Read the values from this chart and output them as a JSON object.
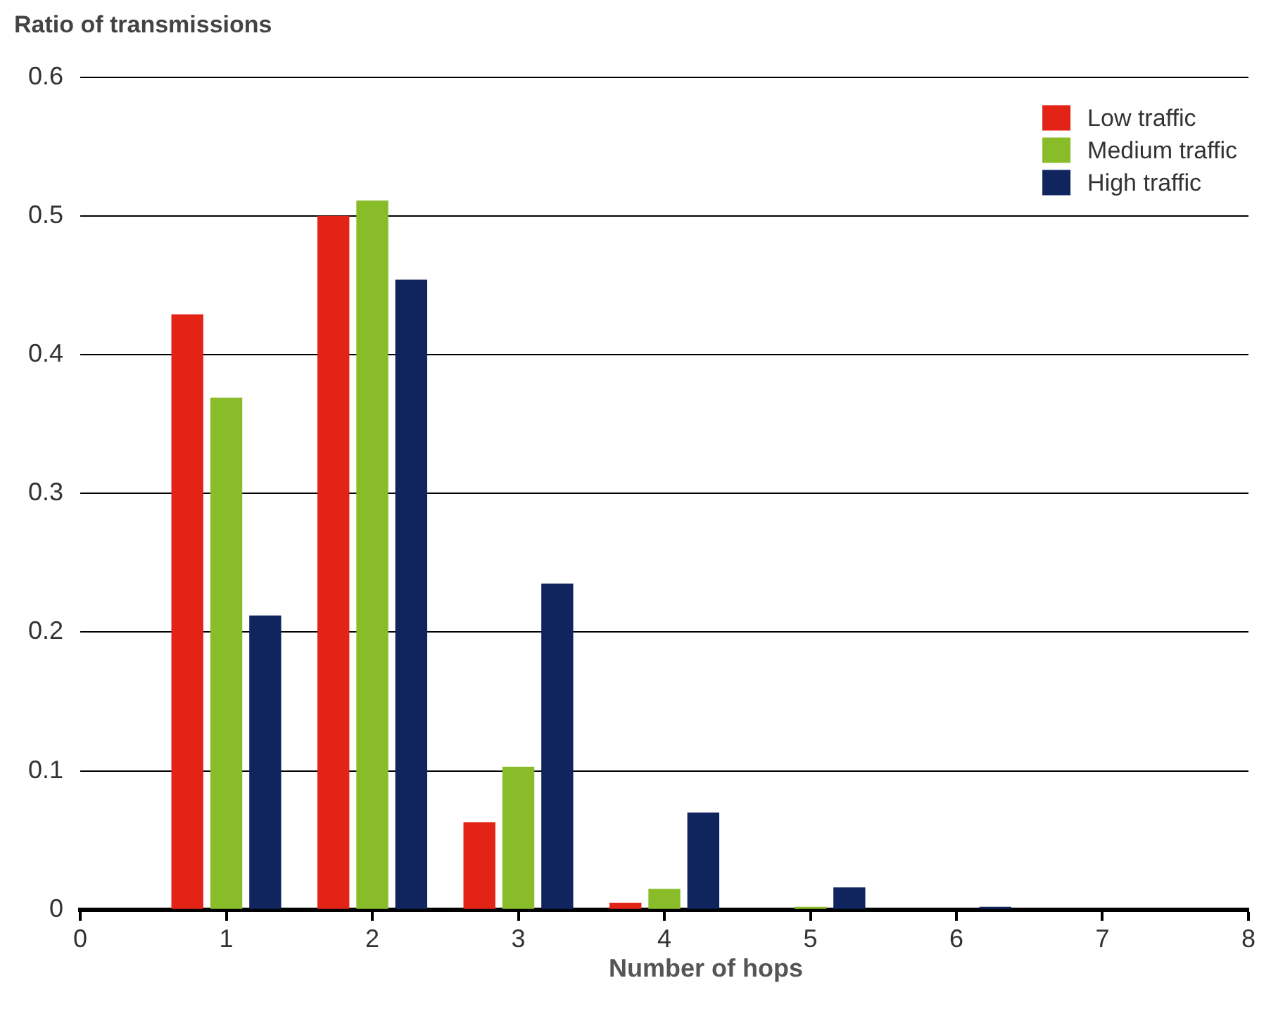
{
  "chart_data": {
    "type": "bar",
    "ylabel": "Ratio of transmissions",
    "xlabel": "Number of hops",
    "x": [
      1,
      2,
      3,
      4,
      5,
      6
    ],
    "series": [
      {
        "name": "Low traffic",
        "color": "#e32315",
        "values": [
          0.429,
          0.5,
          0.063,
          0.005,
          0,
          0
        ]
      },
      {
        "name": "Medium traffic",
        "color": "#88bc29",
        "values": [
          0.369,
          0.511,
          0.103,
          0.015,
          0.002,
          0
        ]
      },
      {
        "name": "High traffic",
        "color": "#10255d",
        "values": [
          0.212,
          0.454,
          0.235,
          0.07,
          0.016,
          0.002
        ]
      }
    ],
    "xlim": [
      0,
      8
    ],
    "xticks": [
      0,
      1,
      2,
      3,
      4,
      5,
      6,
      7,
      8
    ],
    "ylim": [
      0,
      0.6
    ],
    "yticks": [
      0,
      0.1,
      0.2,
      0.3,
      0.4,
      0.5,
      0.6
    ],
    "grid": "y",
    "legend": "top right"
  }
}
